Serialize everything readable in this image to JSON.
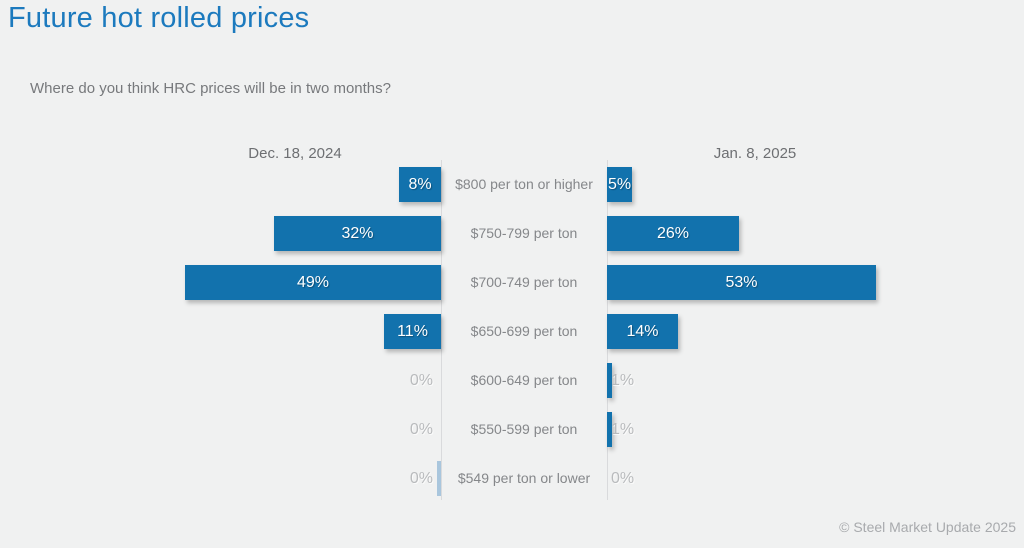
{
  "page": {
    "footer": "© Steel Market Update 2025"
  },
  "chart_data": {
    "type": "bar",
    "variant": "butterfly-horizontal",
    "title": "Future hot rolled prices",
    "subtitle": "Where do you think HRC prices will be in two months?",
    "categories": [
      "$800 per ton or higher",
      "$750-799 per ton",
      "$700-749 per ton",
      "$650-699 per ton",
      "$600-649 per ton",
      "$550-599 per ton",
      "$549 per ton or lower"
    ],
    "series": [
      {
        "name": "Dec. 18, 2024",
        "side": "left",
        "values": [
          8,
          32,
          49,
          11,
          0,
          0,
          0
        ],
        "labels": [
          "8%",
          "32%",
          "49%",
          "11%",
          "0%",
          "0%",
          "0%"
        ]
      },
      {
        "name": "Jan. 8, 2025",
        "side": "right",
        "values": [
          5,
          26,
          53,
          14,
          1,
          1,
          0
        ],
        "labels": [
          "5%",
          "26%",
          "53%",
          "14%",
          "1%",
          "1%",
          "0%"
        ]
      }
    ],
    "value_suffix": "%",
    "xlim": [
      0,
      55
    ],
    "grid": false,
    "legend_position": "column-headers-above",
    "annotations": {
      "left_zero_sliver_row_index": 6
    },
    "colors": {
      "bar": "#1272ad",
      "bar_faint_sliver": "#a9c6dd",
      "title": "#1c7abe",
      "subtitle": "#77797c",
      "header_label": "#6d6f72",
      "category_label": "#85878a",
      "muted_value_label": "#b9bbbd",
      "bar_value_label": "#ffffff",
      "axis_line": "#d9dadc",
      "background": "#f0f1f1",
      "footer": "#a8aaad"
    }
  }
}
